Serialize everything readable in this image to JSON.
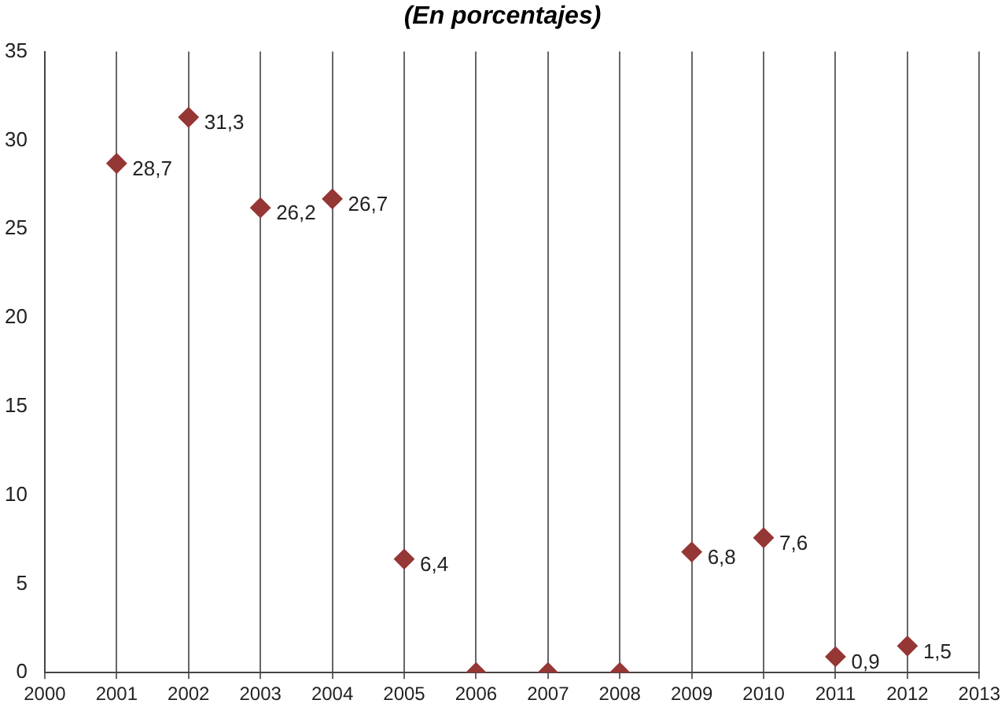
{
  "chart_data": {
    "type": "scatter",
    "title": "(En porcentajes)",
    "x": [
      2001,
      2002,
      2003,
      2004,
      2005,
      2006,
      2007,
      2008,
      2009,
      2010,
      2011,
      2012
    ],
    "values": [
      28.7,
      31.3,
      26.2,
      26.7,
      6.4,
      0,
      0,
      0,
      6.8,
      7.6,
      0.9,
      1.5
    ],
    "value_labels": [
      "28,7",
      "31,3",
      "26,2",
      "26,7",
      "6,4",
      null,
      null,
      null,
      "6,8",
      "7,6",
      "0,9",
      "1,5"
    ],
    "color": "#953735",
    "marker": "diamond",
    "grid": "x",
    "legend": false,
    "xlim": [
      2000,
      2013
    ],
    "xticks": [
      2000,
      2001,
      2002,
      2003,
      2004,
      2005,
      2006,
      2007,
      2008,
      2009,
      2010,
      2011,
      2012,
      2013
    ],
    "ylim": [
      0,
      35
    ],
    "yticks": [
      0,
      5,
      10,
      15,
      20,
      25,
      30,
      35
    ]
  }
}
